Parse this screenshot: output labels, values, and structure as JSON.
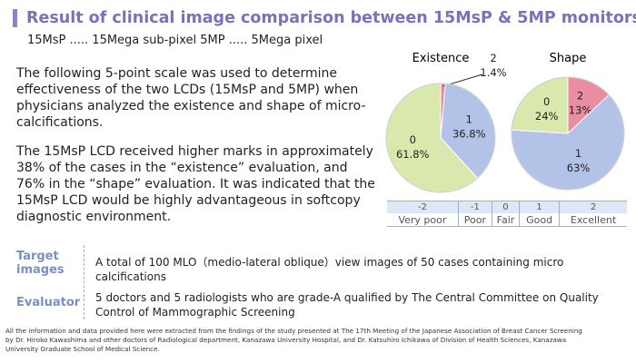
{
  "header": {
    "title": "Result of clinical image comparison between 15MsP & 5MP monitors",
    "subtitle": "15MsP ..... 15Mega sub-pixel 5MP ..... 5Mega pixel"
  },
  "paragraphs": [
    "The following 5-point scale was used to determine effectiveness of the two LCDs (15MsP and 5MP) when physicians analyzed the existence and shape of micro-calcifications.",
    "The 15MsP LCD received higher marks in approximately 38% of the cases in the “existence” evaluation, and 76% in the “shape”  evaluation. It was indicated that the 15MsP LCD would be highly advantageous in softcopy diagnostic environment."
  ],
  "chart_data": [
    {
      "type": "pie",
      "title": "Existence",
      "categories": [
        "2",
        "1",
        "0"
      ],
      "values": [
        1.4,
        36.8,
        61.8
      ],
      "value_labels": [
        "1.4%",
        "36.8%",
        "61.8%"
      ],
      "colors": [
        "#e98ea0",
        "#b3c3e8",
        "#d9e8ad"
      ]
    },
    {
      "type": "pie",
      "title": "Shape",
      "categories": [
        "2",
        "1",
        "0"
      ],
      "values": [
        13,
        63,
        24
      ],
      "value_labels": [
        "13%",
        "63%",
        "24%"
      ],
      "colors": [
        "#e98ea0",
        "#b3c3e8",
        "#d9e8ad"
      ]
    }
  ],
  "scale": [
    {
      "score": "-2",
      "label": "Very poor"
    },
    {
      "score": "-1",
      "label": "Poor"
    },
    {
      "score": "0",
      "label": "Fair"
    },
    {
      "score": "1",
      "label": "Good"
    },
    {
      "score": "2",
      "label": "Excellent"
    }
  ],
  "details": [
    {
      "label": "Target images",
      "text": "A total of 100 MLO（medio-lateral oblique）view images of 50 cases containing micro calcifications"
    },
    {
      "label": "Evaluator",
      "text": "5 doctors and 5 radiologists who are grade-A qualified by The Central Committee on Quality Control of Mammographic Screening"
    }
  ],
  "footnote": [
    "All the information and data provided here were extracted from the findings of the study presented at The 17th Meeting of the Japanese Association of Breast Cancer Screening",
    "by Dr. Hiroko Kawashima and other doctors of Radiological department, Kanazawa University Hospital, and Dr. Katsuhiro Ichikawa of Division of Health Sciences, Kanazawa",
    "University Graduate School of Medical Science."
  ]
}
